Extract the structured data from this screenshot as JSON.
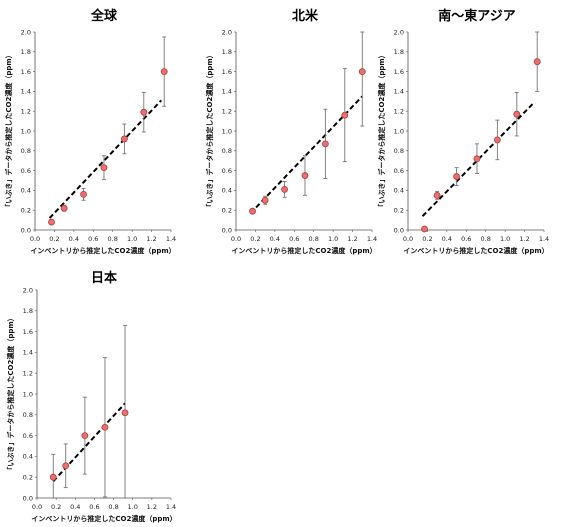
{
  "chart_data": [
    {
      "type": "scatter",
      "title": "全球",
      "xlabel": "インベントリから推定したCO2濃度（ppm）",
      "ylabel": "「いぶき」データから推定したCO2濃度（ppm）",
      "xlim": [
        0,
        1.4
      ],
      "ylim": [
        0,
        2.0
      ],
      "xticks": [
        "0.0",
        "0.2",
        "0.4",
        "0.6",
        "0.8",
        "1.0",
        "1.2",
        "1.4"
      ],
      "yticks": [
        "0.0",
        "0.2",
        "0.4",
        "0.6",
        "0.8",
        "1.0",
        "1.2",
        "1.4",
        "1.6",
        "1.8",
        "2.0"
      ],
      "points": [
        {
          "x": 0.17,
          "y": 0.08,
          "err": 0.0
        },
        {
          "x": 0.3,
          "y": 0.22,
          "err": 0.03
        },
        {
          "x": 0.5,
          "y": 0.36,
          "err": 0.06
        },
        {
          "x": 0.71,
          "y": 0.63,
          "err": 0.12
        },
        {
          "x": 0.92,
          "y": 0.92,
          "err": 0.15
        },
        {
          "x": 1.12,
          "y": 1.19,
          "err": 0.2
        },
        {
          "x": 1.33,
          "y": 1.6,
          "err": 0.35
        }
      ],
      "trend": {
        "x": [
          0.15,
          1.3
        ],
        "y": [
          0.12,
          1.31
        ]
      }
    },
    {
      "type": "scatter",
      "title": "北米",
      "xlabel": "インベントリから推定したCO2濃度（ppm）",
      "ylabel": "「いぶき」データから推定したCO2濃度（ppm）",
      "xlim": [
        0,
        1.4
      ],
      "ylim": [
        0,
        2.0
      ],
      "xticks": [
        "0.0",
        "0.2",
        "0.4",
        "0.6",
        "0.8",
        "1.0",
        "1.2",
        "1.4"
      ],
      "yticks": [
        "0.0",
        "0.2",
        "0.4",
        "0.6",
        "0.8",
        "1.0",
        "1.2",
        "1.4",
        "1.6",
        "1.8",
        "2.0"
      ],
      "points": [
        {
          "x": 0.17,
          "y": 0.19,
          "err": 0.02
        },
        {
          "x": 0.3,
          "y": 0.3,
          "err": 0.04
        },
        {
          "x": 0.5,
          "y": 0.41,
          "err": 0.08
        },
        {
          "x": 0.71,
          "y": 0.55,
          "err": 0.2
        },
        {
          "x": 0.92,
          "y": 0.87,
          "err": 0.35
        },
        {
          "x": 1.12,
          "y": 1.16,
          "err": 0.47
        },
        {
          "x": 1.3,
          "y": 1.6,
          "err": 0.55
        }
      ],
      "trend": {
        "x": [
          0.15,
          1.3
        ],
        "y": [
          0.17,
          1.35
        ]
      }
    },
    {
      "type": "scatter",
      "title": "南～東アジア",
      "xlabel": "インベントリから推定したCO2濃度（ppm）",
      "ylabel": "「いぶき」データから推定したCO2濃度（ppm）",
      "xlim": [
        0,
        1.4
      ],
      "ylim": [
        0,
        2.0
      ],
      "xticks": [
        "0.0",
        "0.2",
        "0.4",
        "0.6",
        "0.8",
        "1.0",
        "1.2",
        "1.4"
      ],
      "yticks": [
        "0.0",
        "0.2",
        "0.4",
        "0.6",
        "0.8",
        "1.0",
        "1.2",
        "1.4",
        "1.6",
        "1.8",
        "2.0"
      ],
      "points": [
        {
          "x": 0.17,
          "y": 0.01,
          "err": 0.0
        },
        {
          "x": 0.3,
          "y": 0.35,
          "err": 0.04
        },
        {
          "x": 0.5,
          "y": 0.54,
          "err": 0.09
        },
        {
          "x": 0.71,
          "y": 0.72,
          "err": 0.15
        },
        {
          "x": 0.92,
          "y": 0.91,
          "err": 0.2
        },
        {
          "x": 1.12,
          "y": 1.17,
          "err": 0.22
        },
        {
          "x": 1.33,
          "y": 1.7,
          "err": 0.3
        }
      ],
      "trend": {
        "x": [
          0.15,
          1.3
        ],
        "y": [
          0.14,
          1.29
        ]
      }
    },
    {
      "type": "scatter",
      "title": "日本",
      "xlabel": "インベントリから推定したCO2濃度（ppm）",
      "ylabel": "「いぶき」データから推定したCO2濃度（ppm）",
      "xlim": [
        0,
        1.4
      ],
      "ylim": [
        0,
        2.0
      ],
      "xticks": [
        "0.0",
        "0.2",
        "0.4",
        "0.6",
        "0.8",
        "1.0",
        "1.2",
        "1.4"
      ],
      "yticks": [
        "0.0",
        "0.2",
        "0.4",
        "0.6",
        "0.8",
        "1.0",
        "1.2",
        "1.4",
        "1.6",
        "1.8",
        "2.0"
      ],
      "points": [
        {
          "x": 0.17,
          "y": 0.2,
          "err": 0.22
        },
        {
          "x": 0.3,
          "y": 0.31,
          "err": 0.21
        },
        {
          "x": 0.5,
          "y": 0.6,
          "err": 0.37
        },
        {
          "x": 0.71,
          "y": 0.68,
          "err": 0.67
        },
        {
          "x": 0.92,
          "y": 0.82,
          "err": 0.84
        }
      ],
      "trend": {
        "x": [
          0.17,
          0.92
        ],
        "y": [
          0.16,
          0.91
        ]
      }
    }
  ]
}
